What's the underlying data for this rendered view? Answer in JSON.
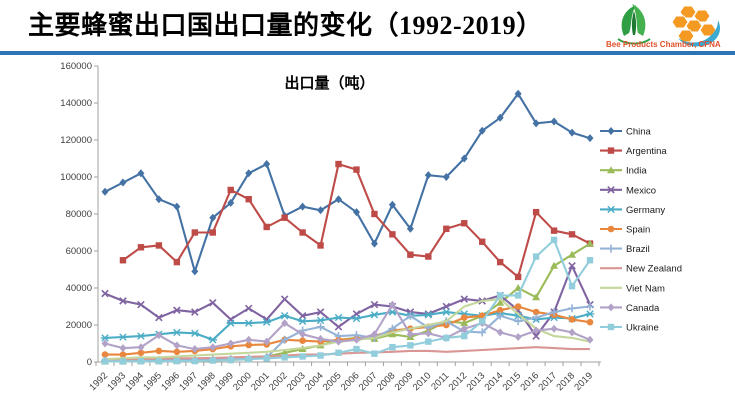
{
  "header": {
    "title": "主要蜂蜜出口国出口量的变化（1992-2019）",
    "caption": "Bee Products Chamber, CFNA",
    "caption_color": "#E2502A",
    "divider_color": "#2E74B5",
    "title_color": "#000000"
  },
  "chart_data": {
    "type": "line",
    "title": "出口量（吨）",
    "unit": "tons",
    "xlabel": "",
    "ylabel": "",
    "ylim": [
      0,
      160000
    ],
    "ytick_step": 20000,
    "grid": false,
    "legend_position": "right",
    "axis_color": "#A0A0A0",
    "tick_label_color": "#3F3F3F",
    "x": [
      1992,
      1993,
      1994,
      1995,
      1996,
      1997,
      1998,
      1999,
      2000,
      2001,
      2002,
      2003,
      2004,
      2005,
      2006,
      2007,
      2008,
      2009,
      2010,
      2011,
      2012,
      2013,
      2014,
      2015,
      2016,
      2017,
      2018,
      2019
    ],
    "series": [
      {
        "name": "China",
        "color": "#4472A4",
        "marker": "diamond",
        "values": [
          92000,
          97000,
          102000,
          88000,
          84000,
          49000,
          78000,
          86000,
          102000,
          107000,
          79000,
          84000,
          82000,
          88000,
          81000,
          64000,
          85000,
          72000,
          101000,
          100000,
          110000,
          125000,
          132000,
          145000,
          129000,
          130000,
          124000,
          121000
        ]
      },
      {
        "name": "Argentina",
        "color": "#BE4B48",
        "marker": "square",
        "values": [
          null,
          55000,
          62000,
          63000,
          54000,
          70000,
          70000,
          93000,
          88000,
          73000,
          78000,
          70000,
          63000,
          107000,
          104000,
          80000,
          69000,
          58000,
          57000,
          72000,
          75000,
          65000,
          54000,
          46000,
          81000,
          71000,
          69000,
          64000
        ]
      },
      {
        "name": "India",
        "color": "#9BBB59",
        "marker": "triangle",
        "values": [
          400,
          400,
          500,
          700,
          800,
          1000,
          1200,
          1500,
          2000,
          3000,
          5000,
          7000,
          9000,
          12000,
          13000,
          12500,
          15000,
          13500,
          17000,
          22000,
          21000,
          25000,
          32000,
          40000,
          35000,
          52000,
          58000,
          64000
        ]
      },
      {
        "name": "Mexico",
        "color": "#8064A2",
        "marker": "x",
        "values": [
          37000,
          33000,
          31000,
          24000,
          28000,
          27000,
          32000,
          23000,
          29000,
          23000,
          34000,
          25000,
          27000,
          19000,
          26000,
          31000,
          30000,
          27000,
          26000,
          30000,
          34000,
          33000,
          36000,
          28000,
          14000,
          27000,
          52000,
          31000
        ]
      },
      {
        "name": "Germany",
        "color": "#4BACC6",
        "marker": "asterisk",
        "values": [
          13000,
          13500,
          14000,
          15000,
          16000,
          15500,
          12000,
          21000,
          21000,
          21500,
          25000,
          22000,
          22500,
          24000,
          23500,
          25500,
          27000,
          25000,
          25500,
          27000,
          26000,
          25000,
          26500,
          25000,
          23000,
          24000,
          23500,
          26000
        ]
      },
      {
        "name": "Spain",
        "color": "#E8873D",
        "marker": "circle",
        "values": [
          4000,
          4000,
          5000,
          6000,
          5500,
          6000,
          7000,
          8500,
          9200,
          9500,
          12000,
          11500,
          11000,
          12000,
          12500,
          14000,
          17000,
          18000,
          19000,
          20000,
          24000,
          25000,
          28000,
          30000,
          27000,
          25500,
          23000,
          21500
        ]
      },
      {
        "name": "Brazil",
        "color": "#95B3D7",
        "marker": "plus",
        "values": [
          800,
          900,
          1000,
          1000,
          1200,
          1200,
          1500,
          1500,
          1800,
          2500,
          12000,
          17000,
          19000,
          14000,
          14500,
          13000,
          18000,
          25000,
          18500,
          22000,
          16500,
          16000,
          25000,
          22000,
          24000,
          27000,
          29000,
          30000
        ]
      },
      {
        "name": "New Zealand",
        "color": "#D99694",
        "marker": "none",
        "values": [
          1500,
          1500,
          1600,
          1800,
          2000,
          2000,
          2200,
          2500,
          2800,
          3000,
          3500,
          4000,
          4000,
          4500,
          5000,
          5200,
          5500,
          6000,
          6000,
          5500,
          6000,
          6500,
          7000,
          7500,
          8000,
          7500,
          7000,
          7000
        ]
      },
      {
        "name": "Viet Nam",
        "color": "#C3D69B",
        "marker": "none",
        "values": [
          1500,
          2000,
          2500,
          2500,
          3000,
          3500,
          4000,
          4500,
          5000,
          5500,
          6500,
          7500,
          9000,
          11000,
          12000,
          13000,
          16000,
          18000,
          20000,
          22000,
          30000,
          33000,
          34000,
          26000,
          18000,
          14000,
          13000,
          11000
        ]
      },
      {
        "name": "Canada",
        "color": "#B3A2C7",
        "marker": "diamond",
        "values": [
          10000,
          7500,
          8000,
          14500,
          9000,
          7000,
          8000,
          10000,
          12000,
          11000,
          21000,
          15000,
          12500,
          11000,
          12000,
          15000,
          31000,
          15000,
          15500,
          13000,
          18000,
          21000,
          16000,
          13500,
          17000,
          18000,
          16000,
          12000
        ]
      },
      {
        "name": "Ukraine",
        "color": "#92CDDC",
        "marker": "square",
        "values": [
          300,
          300,
          400,
          400,
          500,
          500,
          800,
          1000,
          1500,
          2000,
          2500,
          3000,
          3500,
          5000,
          7000,
          4500,
          8000,
          9000,
          11000,
          13000,
          14000,
          22000,
          36000,
          36000,
          57000,
          66000,
          41000,
          55000
        ]
      }
    ]
  }
}
